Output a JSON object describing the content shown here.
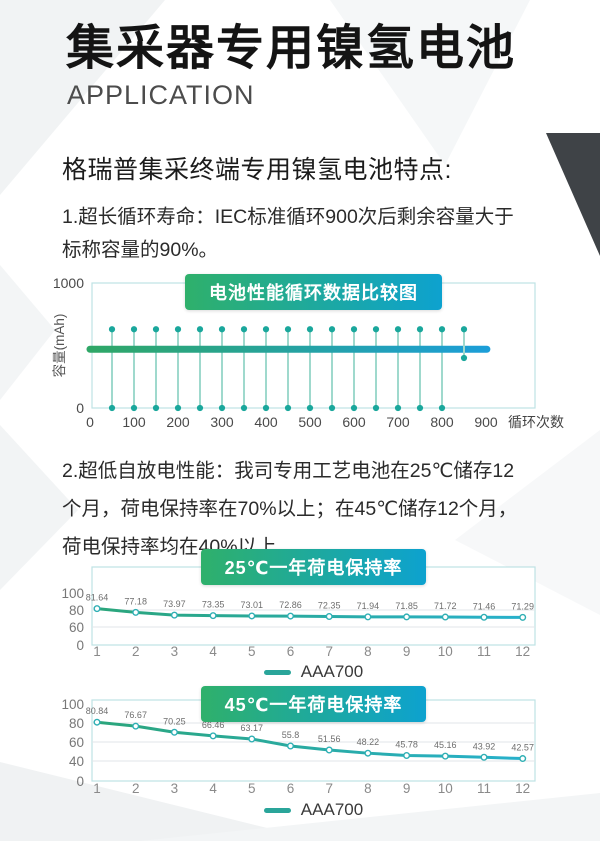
{
  "page": {
    "title": "集采器专用镍氢电池",
    "subtitle": "APPLICATION",
    "section_heading": "格瑞普集采终端专用镍氢电池特点:",
    "features": [
      {
        "lines": [
          "1.超长循环寿命：IEC标准循环900次后剩余容量大于",
          "标称容量的90%。"
        ]
      },
      {
        "lines": [
          "2.超低自放电性能：我司专用工艺电池在25℃储存12",
          "个月，荷电保持率在70%以上；在45℃储存12个月，",
          "荷电保持率均在40%以上"
        ]
      }
    ]
  },
  "colors": {
    "badge_gradient_start": "#2FB06B",
    "badge_gradient_end": "#0DA2CF",
    "capacity_line_gradient_start": "#2FA767",
    "capacity_line_gradient_end": "#1C9ED8",
    "retention_line_gradient_start": "#2BA57A",
    "retention_line_gradient_end": "#28B1CE",
    "cycle_mark_line": "#9FD9CD",
    "dot_teal": "#1AA79C",
    "plot_border": "#BFE2E4",
    "grid_line": "#E2E6E8",
    "marker_stroke": "#2FAFB4",
    "legend_swatch": "#2AA59A",
    "tick_text_dark": "#4a4a4a",
    "tick_text_gray": "#777777",
    "month_text": "#8a8a8a",
    "value_label": "#6e6e6e",
    "dark_wedge": "#3F4347",
    "deco_gray": "#F1F3F4"
  },
  "chart_data": [
    {
      "type": "line",
      "variant": "cycle_endurance",
      "title": "电池性能循环数据比较图",
      "ylabel": "容量(mAh)",
      "xlabel": "循环次数",
      "ylim": [
        0,
        1000
      ],
      "yticks": [
        0,
        1000
      ],
      "xticks": [
        0,
        100,
        200,
        300,
        400,
        500,
        600,
        700,
        800,
        900
      ],
      "cycle_marks": {
        "from": 50,
        "to": 800,
        "step": 50,
        "top_value": 630,
        "bottom_value": 0
      },
      "final_mark": {
        "x": 850,
        "top_value": 630,
        "bottom_value": 400
      },
      "capacity_line": {
        "value": 470,
        "x_from": 0,
        "x_to": 902
      },
      "grid": false,
      "legend_position": "none"
    },
    {
      "type": "line",
      "title": "25℃一年荷电保持率",
      "xlabel": "",
      "ylabel": "",
      "x": [
        1,
        2,
        3,
        4,
        5,
        6,
        7,
        8,
        9,
        10,
        11,
        12
      ],
      "yticks": [
        0,
        60,
        80,
        100
      ],
      "ylim": [
        0,
        100
      ],
      "series": [
        {
          "name": "AAA700",
          "values": [
            81.64,
            77.18,
            73.97,
            73.35,
            73.01,
            72.86,
            72.35,
            71.94,
            71.85,
            71.72,
            71.46,
            71.29
          ]
        }
      ],
      "grid": true,
      "legend_position": "bottom"
    },
    {
      "type": "line",
      "title": "45℃一年荷电保持率",
      "xlabel": "",
      "ylabel": "",
      "x": [
        1,
        2,
        3,
        4,
        5,
        6,
        7,
        8,
        9,
        10,
        11,
        12
      ],
      "yticks": [
        0,
        40,
        60,
        80,
        100
      ],
      "ylim": [
        0,
        100
      ],
      "series": [
        {
          "name": "AAA700",
          "values": [
            80.84,
            76.67,
            70.25,
            66.46,
            63.17,
            55.8,
            51.56,
            48.22,
            45.78,
            45.16,
            43.92,
            42.57
          ]
        }
      ],
      "grid": true,
      "legend_position": "bottom"
    }
  ]
}
